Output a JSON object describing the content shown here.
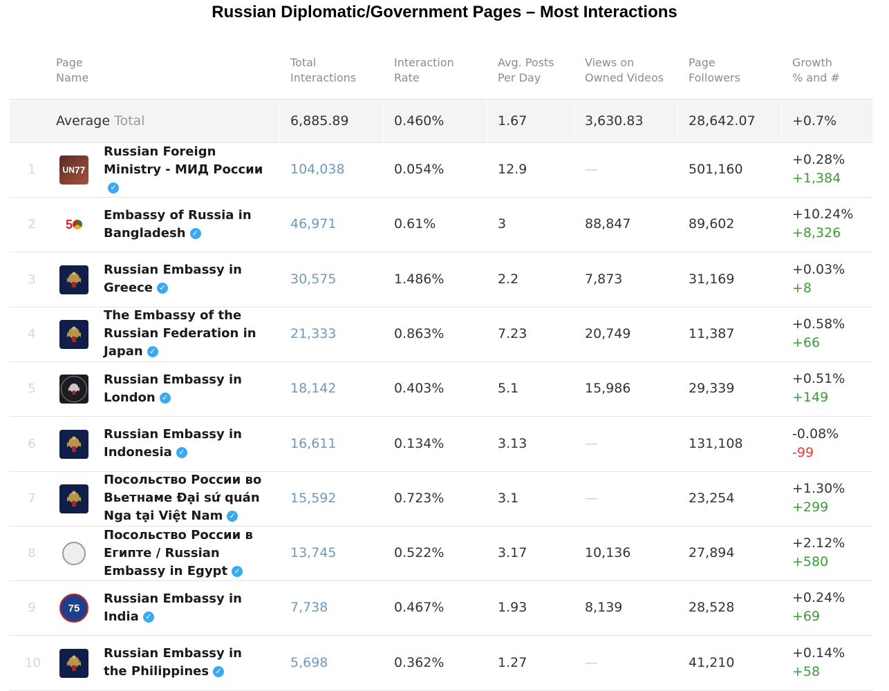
{
  "title": "Russian Diplomatic/Government Pages – Most Interactions",
  "columns": {
    "page_name": "Page\nName",
    "total_interactions": "Total\nInteractions",
    "interaction_rate": "Interaction\nRate",
    "avg_posts": "Avg. Posts\nPer Day",
    "views": "Views on\nOwned Videos",
    "followers": "Page\nFollowers",
    "growth": "Growth\n% and #"
  },
  "average": {
    "label": "Average",
    "sublabel": "Total",
    "total_interactions": "6,885.89",
    "interaction_rate": "0.460%",
    "avg_posts": "1.67",
    "views": "3,630.83",
    "followers": "28,642.07",
    "growth": "+0.7%"
  },
  "rows": [
    {
      "rank": "1",
      "name": "Russian Foreign Ministry - МИД России",
      "avatar": "un77-logo",
      "total": "104,038",
      "rate": "0.054%",
      "posts": "12.9",
      "views": "—",
      "followers": "501,160",
      "growth_pct": "+0.28%",
      "growth_num": "+1,384",
      "growth_dir": "pos"
    },
    {
      "rank": "2",
      "name": "Embassy of Russia in Bangladesh",
      "avatar": "50-years-logo",
      "total": "46,971",
      "rate": "0.61%",
      "posts": "3",
      "views": "88,847",
      "followers": "89,602",
      "growth_pct": "+10.24%",
      "growth_num": "+8,326",
      "growth_dir": "pos"
    },
    {
      "rank": "3",
      "name": "Russian Embassy in Greece",
      "avatar": "coat-of-arms-icon",
      "total": "30,575",
      "rate": "1.486%",
      "posts": "2.2",
      "views": "7,873",
      "followers": "31,169",
      "growth_pct": "+0.03%",
      "growth_num": "+8",
      "growth_dir": "pos"
    },
    {
      "rank": "4",
      "name": "The Embassy of the Russian Federation in Japan",
      "avatar": "coat-of-arms-icon",
      "total": "21,333",
      "rate": "0.863%",
      "posts": "7.23",
      "views": "20,749",
      "followers": "11,387",
      "growth_pct": "+0.58%",
      "growth_num": "+66",
      "growth_dir": "pos"
    },
    {
      "rank": "5",
      "name": "Russian Embassy in London",
      "avatar": "coat-of-arms-dark-icon",
      "total": "18,142",
      "rate": "0.403%",
      "posts": "5.1",
      "views": "15,986",
      "followers": "29,339",
      "growth_pct": "+0.51%",
      "growth_num": "+149",
      "growth_dir": "pos"
    },
    {
      "rank": "6",
      "name": "Russian Embassy in Indonesia",
      "avatar": "coat-of-arms-icon",
      "total": "16,611",
      "rate": "0.134%",
      "posts": "3.13",
      "views": "—",
      "followers": "131,108",
      "growth_pct": "-0.08%",
      "growth_num": "-99",
      "growth_dir": "neg"
    },
    {
      "rank": "7",
      "name": "Посольство России во Вьетнаме Đại sứ quán Nga tại Việt Nam",
      "avatar": "coat-of-arms-icon",
      "total": "15,592",
      "rate": "0.723%",
      "posts": "3.1",
      "views": "—",
      "followers": "23,254",
      "growth_pct": "+1.30%",
      "growth_num": "+299",
      "growth_dir": "pos"
    },
    {
      "rank": "8",
      "name": "Посольство России в Египте / Russian Embassy in Egypt",
      "avatar": "seal-logo",
      "total": "13,745",
      "rate": "0.522%",
      "posts": "3.17",
      "views": "10,136",
      "followers": "27,894",
      "growth_pct": "+2.12%",
      "growth_num": "+580",
      "growth_dir": "pos"
    },
    {
      "rank": "9",
      "name": "Russian Embassy in India",
      "avatar": "round-75-logo",
      "total": "7,738",
      "rate": "0.467%",
      "posts": "1.93",
      "views": "8,139",
      "followers": "28,528",
      "growth_pct": "+0.24%",
      "growth_num": "+69",
      "growth_dir": "pos"
    },
    {
      "rank": "10",
      "name": "Russian Embassy in the Philippines",
      "avatar": "coat-of-arms-icon",
      "total": "5,698",
      "rate": "0.362%",
      "posts": "1.27",
      "views": "—",
      "followers": "41,210",
      "growth_pct": "+0.14%",
      "growth_num": "+58",
      "growth_dir": "pos"
    }
  ],
  "colors": {
    "link": "#6f98bd",
    "positive": "#3d9b35",
    "negative": "#e53935",
    "verified": "#3aaaf0"
  }
}
